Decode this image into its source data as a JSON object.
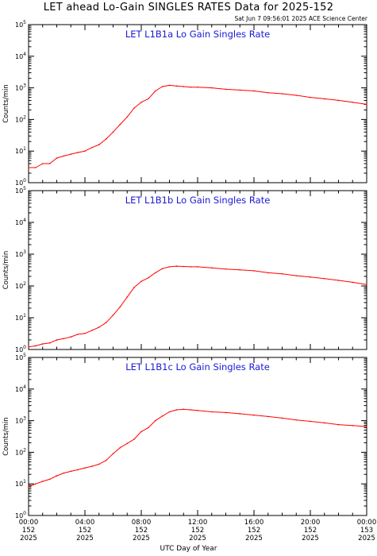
{
  "title": "LET ahead Lo-Gain SINGLES RATES Data for 2025-152",
  "timestamp": "Sat Jun  7 09:56:01 2025 ACE Science Center",
  "xlabel": "UTC Day of Year",
  "colors": {
    "series": "#ff0000",
    "panel_title": "#1a1ad6",
    "axes": "#000000"
  },
  "chart_data": [
    {
      "type": "line",
      "title": "LET L1B1a Lo Gain Singles Rate",
      "ylabel": "Counts/min",
      "yscale": "log",
      "ylim": [
        1,
        100000
      ],
      "xlim": [
        0,
        24
      ],
      "x_unit": "hours UTC, day 152 of 2025",
      "series": [
        {
          "x": [
            0,
            0.5,
            1,
            1.5,
            2,
            2.5,
            3,
            3.5,
            4,
            4.5,
            5,
            5.5,
            6,
            6.5,
            7,
            7.5,
            8,
            8.5,
            9,
            9.5,
            10,
            10.5,
            11,
            11.5,
            12,
            13,
            14,
            15,
            16,
            17,
            18,
            19,
            20,
            21,
            22,
            23,
            24
          ],
          "values": [
            3,
            3,
            4,
            4,
            6,
            7,
            8,
            9,
            10,
            13,
            16,
            24,
            40,
            70,
            120,
            230,
            350,
            450,
            800,
            1100,
            1200,
            1150,
            1100,
            1050,
            1050,
            1000,
            900,
            850,
            800,
            700,
            650,
            580,
            500,
            450,
            400,
            350,
            300
          ]
        }
      ]
    },
    {
      "type": "line",
      "title": "LET L1B1b Lo Gain Singles Rate",
      "ylabel": "Counts/min",
      "yscale": "log",
      "ylim": [
        1,
        100000
      ],
      "xlim": [
        0,
        24
      ],
      "x_unit": "hours UTC, day 152 of 2025",
      "series": [
        {
          "x": [
            0,
            0.5,
            1,
            1.5,
            2,
            2.5,
            3,
            3.5,
            4,
            4.5,
            5,
            5.5,
            6,
            6.5,
            7,
            7.5,
            8,
            8.5,
            9,
            9.5,
            10,
            10.5,
            11,
            11.5,
            12,
            13,
            14,
            15,
            16,
            17,
            18,
            19,
            20,
            21,
            22,
            23,
            24
          ],
          "values": [
            1.2,
            1.3,
            1.5,
            1.6,
            2,
            2.2,
            2.5,
            3,
            3.2,
            4,
            5,
            7,
            12,
            22,
            45,
            90,
            140,
            180,
            260,
            350,
            400,
            420,
            410,
            400,
            400,
            370,
            340,
            320,
            300,
            260,
            240,
            210,
            190,
            170,
            150,
            130,
            110
          ]
        }
      ]
    },
    {
      "type": "line",
      "title": "LET L1B1c Lo Gain Singles Rate",
      "ylabel": "Counts/min",
      "yscale": "log",
      "ylim": [
        1,
        100000
      ],
      "xlim": [
        0,
        24
      ],
      "x_unit": "hours UTC, day 152 of 2025",
      "series": [
        {
          "x": [
            0,
            0.5,
            1,
            1.5,
            2,
            2.5,
            3,
            3.5,
            4,
            4.5,
            5,
            5.5,
            6,
            6.5,
            7,
            7.5,
            8,
            8.5,
            9,
            9.5,
            10,
            10.5,
            11,
            11.5,
            12,
            13,
            14,
            15,
            16,
            17,
            18,
            19,
            20,
            21,
            22,
            23,
            24
          ],
          "values": [
            8,
            10,
            12,
            14,
            18,
            22,
            25,
            28,
            32,
            36,
            42,
            55,
            90,
            140,
            190,
            260,
            450,
            600,
            1000,
            1400,
            1900,
            2200,
            2300,
            2200,
            2100,
            1900,
            1800,
            1650,
            1500,
            1350,
            1200,
            1050,
            950,
            850,
            750,
            700,
            650
          ]
        }
      ]
    }
  ],
  "x_ticks": [
    {
      "time": "00:00",
      "day": "152",
      "year": "2025"
    },
    {
      "time": "04:00",
      "day": "152",
      "year": "2025"
    },
    {
      "time": "08:00",
      "day": "152",
      "year": "2025"
    },
    {
      "time": "12:00",
      "day": "152",
      "year": "2025"
    },
    {
      "time": "16:00",
      "day": "152",
      "year": "2025"
    },
    {
      "time": "20:00",
      "day": "152",
      "year": "2025"
    },
    {
      "time": "00:00",
      "day": "153",
      "year": "2025"
    }
  ],
  "y_ticks": [
    {
      "base": "10",
      "exp": "0"
    },
    {
      "base": "10",
      "exp": "1"
    },
    {
      "base": "10",
      "exp": "2"
    },
    {
      "base": "10",
      "exp": "3"
    },
    {
      "base": "10",
      "exp": "4"
    },
    {
      "base": "10",
      "exp": "5"
    }
  ]
}
